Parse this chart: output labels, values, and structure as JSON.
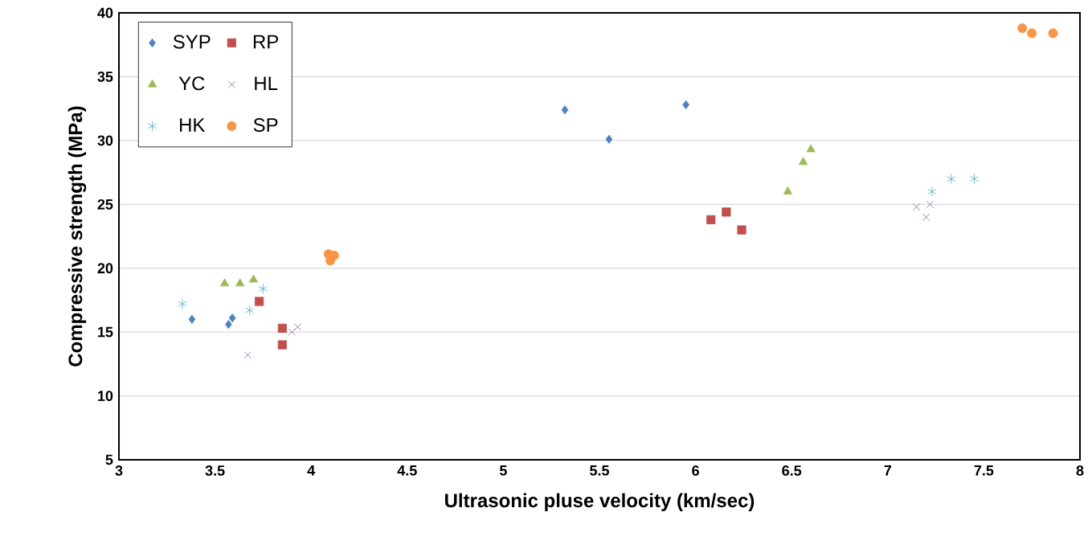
{
  "chart_data": {
    "type": "scatter",
    "xlabel": "Ultrasonic pluse velocity  (km/sec)",
    "ylabel": "Compressive strength (MPa)",
    "xlim": [
      3,
      8
    ],
    "xticks": [
      3,
      3.5,
      4,
      4.5,
      5,
      5.5,
      6,
      6.5,
      7,
      7.5,
      8
    ],
    "ylim": [
      5,
      40
    ],
    "yticks": [
      5,
      10,
      15,
      20,
      25,
      30,
      35,
      40
    ],
    "grid": "y",
    "legend": "top left",
    "series": [
      {
        "name": "SYP",
        "color": "#4f81bd",
        "marker": "diamond",
        "x": [
          3.38,
          3.57,
          3.59,
          5.32,
          5.55,
          5.95
        ],
        "values": [
          16,
          15.6,
          16.1,
          32.4,
          30.1,
          32.8
        ]
      },
      {
        "name": "RP",
        "color": "#c0504d",
        "marker": "square",
        "x": [
          3.73,
          3.85,
          3.85,
          6.08,
          6.16,
          6.24
        ],
        "values": [
          17.4,
          15.3,
          14,
          23.8,
          24.4,
          23
        ]
      },
      {
        "name": "YC",
        "color": "#9bbb59",
        "marker": "triangle",
        "x": [
          3.55,
          3.63,
          3.7,
          6.48,
          6.56,
          6.6
        ],
        "values": [
          18.8,
          18.8,
          19.1,
          26,
          28.3,
          29.3
        ]
      },
      {
        "name": "HL",
        "color": "#8064a2",
        "marker": "cross",
        "x": [
          3.67,
          3.9,
          3.93,
          7.15,
          7.2,
          7.22
        ],
        "values": [
          13.2,
          15,
          15.4,
          24.8,
          24,
          25
        ]
      },
      {
        "name": "HK",
        "color": "#4bacc6",
        "x": [
          3.33,
          3.68,
          3.75,
          7.23,
          7.33,
          7.45
        ],
        "values": [
          17.2,
          16.7,
          18.4,
          26,
          27,
          27
        ]
      },
      {
        "name": "SP",
        "color": "#f79646",
        "marker": "circle",
        "x": [
          4.09,
          4.1,
          4.12,
          7.7,
          7.75,
          7.86
        ],
        "values": [
          21.1,
          20.6,
          21,
          38.8,
          38.4,
          38.4
        ]
      }
    ]
  }
}
